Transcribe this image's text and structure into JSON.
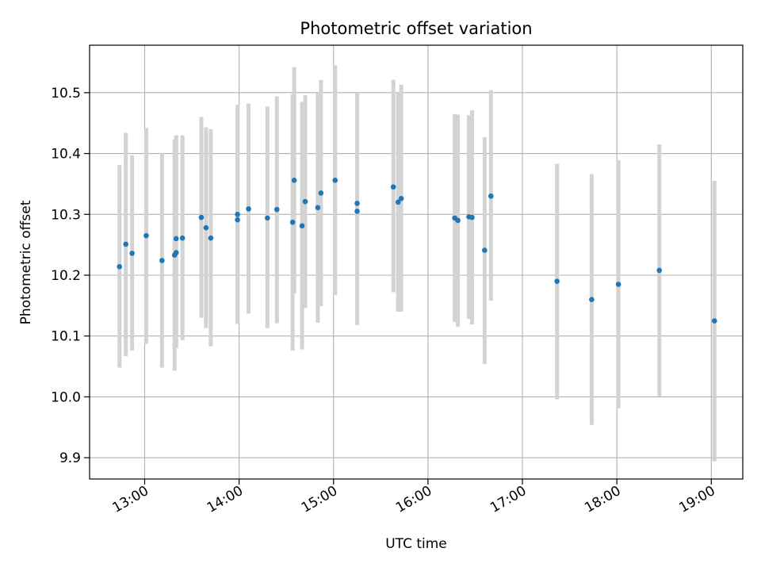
{
  "chart_data": {
    "type": "scatter",
    "title": "Photometric offset variation",
    "xlabel": "UTC time",
    "ylabel": "Photometric offset",
    "xlim": [
      "12:25",
      "19:20"
    ],
    "ylim": [
      9.865,
      10.578
    ],
    "x_ticks": [
      "13:00",
      "14:00",
      "15:00",
      "16:00",
      "17:00",
      "18:00",
      "19:00"
    ],
    "y_ticks": [
      "9.9",
      "10.0",
      "10.1",
      "10.2",
      "10.3",
      "10.4",
      "10.5"
    ],
    "grid": true,
    "colors": {
      "point": "#1f77b4",
      "errorbar": "#d3d3d3",
      "grid": "#b0b0b0"
    },
    "series": [
      {
        "points": [
          {
            "x": "12:44",
            "y": 10.214,
            "lo": 10.048,
            "hi": 10.381
          },
          {
            "x": "12:48",
            "y": 10.251,
            "lo": 10.067,
            "hi": 10.434
          },
          {
            "x": "12:52",
            "y": 10.236,
            "lo": 10.076,
            "hi": 10.397
          },
          {
            "x": "13:01",
            "y": 10.265,
            "lo": 10.087,
            "hi": 10.442
          },
          {
            "x": "13:11",
            "y": 10.224,
            "lo": 10.048,
            "hi": 10.401
          },
          {
            "x": "13:19",
            "y": 10.233,
            "lo": 10.043,
            "hi": 10.423
          },
          {
            "x": "13:20",
            "y": 10.237,
            "lo": 10.08,
            "hi": 10.43
          },
          {
            "x": "13:20",
            "y": 10.26,
            "lo": 10.09,
            "hi": 10.43
          },
          {
            "x": "13:24",
            "y": 10.261,
            "lo": 10.093,
            "hi": 10.43
          },
          {
            "x": "13:36",
            "y": 10.295,
            "lo": 10.13,
            "hi": 10.46
          },
          {
            "x": "13:39",
            "y": 10.278,
            "lo": 10.113,
            "hi": 10.443
          },
          {
            "x": "13:42",
            "y": 10.261,
            "lo": 10.083,
            "hi": 10.44
          },
          {
            "x": "13:59",
            "y": 10.291,
            "lo": 10.12,
            "hi": 10.462
          },
          {
            "x": "13:59",
            "y": 10.3,
            "lo": 10.12,
            "hi": 10.48
          },
          {
            "x": "14:06",
            "y": 10.309,
            "lo": 10.137,
            "hi": 10.482
          },
          {
            "x": "14:18",
            "y": 10.294,
            "lo": 10.113,
            "hi": 10.477
          },
          {
            "x": "14:24",
            "y": 10.308,
            "lo": 10.121,
            "hi": 10.494
          },
          {
            "x": "14:34",
            "y": 10.287,
            "lo": 10.076,
            "hi": 10.497
          },
          {
            "x": "14:35",
            "y": 10.356,
            "lo": 10.17,
            "hi": 10.542
          },
          {
            "x": "14:40",
            "y": 10.281,
            "lo": 10.078,
            "hi": 10.485
          },
          {
            "x": "14:42",
            "y": 10.321,
            "lo": 10.146,
            "hi": 10.496
          },
          {
            "x": "14:50",
            "y": 10.311,
            "lo": 10.122,
            "hi": 10.5
          },
          {
            "x": "14:52",
            "y": 10.335,
            "lo": 10.149,
            "hi": 10.521
          },
          {
            "x": "15:01",
            "y": 10.356,
            "lo": 10.167,
            "hi": 10.545
          },
          {
            "x": "15:15",
            "y": 10.305,
            "lo": 10.118,
            "hi": 10.492
          },
          {
            "x": "15:15",
            "y": 10.318,
            "lo": 10.137,
            "hi": 10.5
          },
          {
            "x": "15:38",
            "y": 10.345,
            "lo": 10.172,
            "hi": 10.521
          },
          {
            "x": "15:41",
            "y": 10.32,
            "lo": 10.14,
            "hi": 10.5
          },
          {
            "x": "15:43",
            "y": 10.326,
            "lo": 10.14,
            "hi": 10.513
          },
          {
            "x": "16:17",
            "y": 10.294,
            "lo": 10.123,
            "hi": 10.465
          },
          {
            "x": "16:19",
            "y": 10.29,
            "lo": 10.115,
            "hi": 10.464
          },
          {
            "x": "16:26",
            "y": 10.296,
            "lo": 10.128,
            "hi": 10.463
          },
          {
            "x": "16:28",
            "y": 10.295,
            "lo": 10.119,
            "hi": 10.471
          },
          {
            "x": "16:36",
            "y": 10.241,
            "lo": 10.054,
            "hi": 10.427
          },
          {
            "x": "16:40",
            "y": 10.33,
            "lo": 10.158,
            "hi": 10.504
          },
          {
            "x": "17:22",
            "y": 10.19,
            "lo": 9.996,
            "hi": 10.383
          },
          {
            "x": "17:44",
            "y": 10.16,
            "lo": 9.954,
            "hi": 10.366
          },
          {
            "x": "18:01",
            "y": 10.185,
            "lo": 9.981,
            "hi": 10.389
          },
          {
            "x": "18:27",
            "y": 10.208,
            "lo": 10.001,
            "hi": 10.415
          },
          {
            "x": "19:02",
            "y": 10.125,
            "lo": 9.894,
            "hi": 10.355
          }
        ]
      }
    ]
  }
}
